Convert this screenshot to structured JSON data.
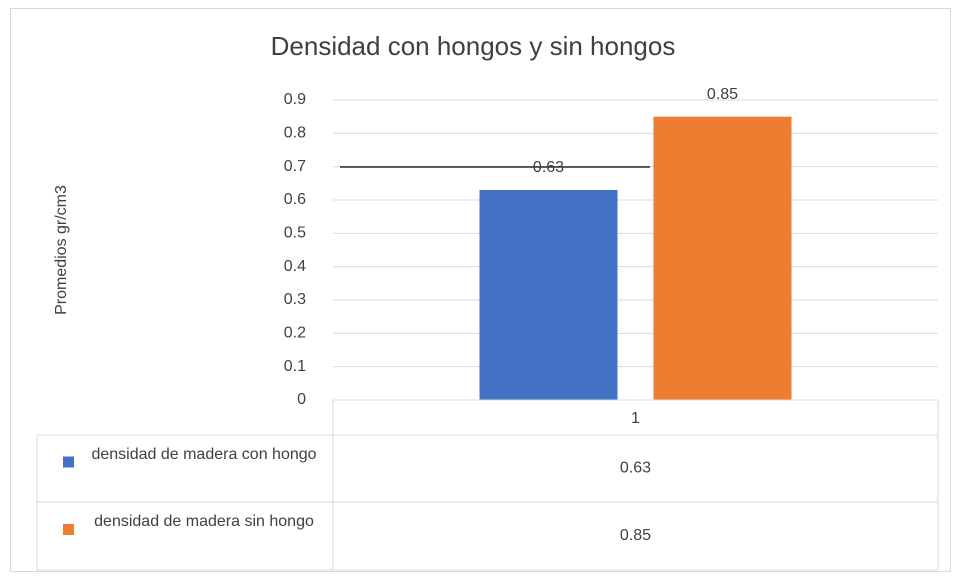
{
  "chart_data": {
    "type": "bar",
    "title": "Densidad con hongos y sin hongos",
    "y_label": "Promedios gr/cm3",
    "categories": [
      "1"
    ],
    "series": [
      {
        "name": "densidad de madera con hongo",
        "color": "#4472c4",
        "values": [
          0.63
        ]
      },
      {
        "name": "densidad de madera sin hongo",
        "color": "#ed7d31",
        "values": [
          0.85
        ]
      }
    ],
    "ylim": [
      0,
      0.9
    ],
    "yticks": [
      0,
      0.1,
      0.2,
      0.3,
      0.4,
      0.5,
      0.6,
      0.7,
      0.8,
      0.9
    ],
    "grid": true,
    "data_table": true
  }
}
